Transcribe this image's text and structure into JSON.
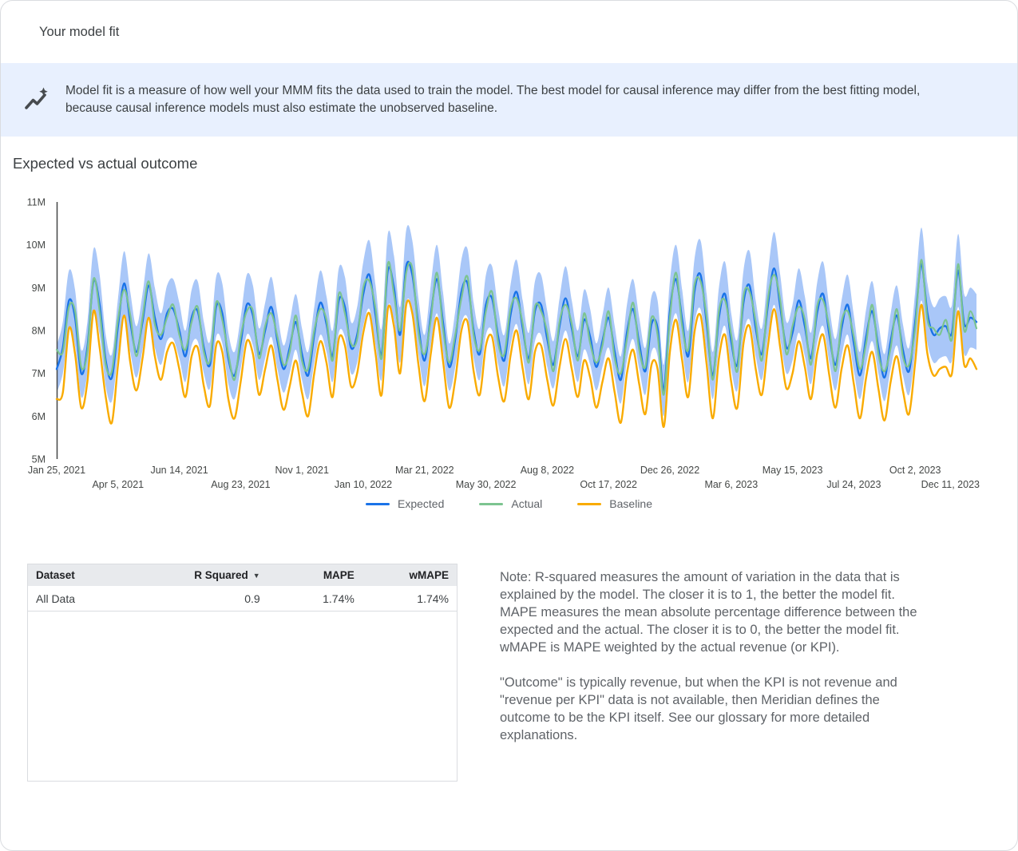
{
  "window": {
    "title": "Your model fit"
  },
  "banner": {
    "icon": "auto-graph-icon",
    "background": "#E8F0FE",
    "text": "Model fit is a measure of how well your MMM fits the data used to train the model. The best model for causal inference may differ from the best fitting model, because causal inference models must also estimate the unobserved baseline."
  },
  "section": {
    "title": "Expected vs actual outcome"
  },
  "chart_data": {
    "type": "line",
    "title": "Expected vs actual outcome",
    "frequency": "weekly",
    "unit": "millions",
    "grid": false,
    "legend_position": "bottom",
    "axis_color": "#444746",
    "y_axis": {
      "tick_labels": [
        "5M",
        "6M",
        "7M",
        "8M",
        "9M",
        "10M",
        "11M"
      ],
      "tick_values": [
        5,
        6,
        7,
        8,
        9,
        10,
        11
      ],
      "range_millions": [
        5,
        11
      ]
    },
    "x_axis": {
      "weeks_total": 150,
      "ticks_row1": [
        {
          "week": 0,
          "label": "Jan 25, 2021"
        },
        {
          "week": 20,
          "label": "Jun 14, 2021"
        },
        {
          "week": 40,
          "label": "Nov 1, 2021"
        },
        {
          "week": 60,
          "label": "Mar 21, 2022"
        },
        {
          "week": 80,
          "label": "Aug 8, 2022"
        },
        {
          "week": 100,
          "label": "Dec 26, 2022"
        },
        {
          "week": 120,
          "label": "May 15, 2023"
        },
        {
          "week": 140,
          "label": "Oct 2, 2023"
        }
      ],
      "ticks_row2": [
        {
          "week": 10,
          "label": "Apr 5, 2021"
        },
        {
          "week": 30,
          "label": "Aug 23, 2021"
        },
        {
          "week": 50,
          "label": "Jan 10, 2022"
        },
        {
          "week": 70,
          "label": "May 30, 2022"
        },
        {
          "week": 90,
          "label": "Oct 17, 2022"
        },
        {
          "week": 110,
          "label": "Mar 6, 2023"
        },
        {
          "week": 130,
          "label": "Jul 24, 2023"
        },
        {
          "week": 150,
          "label": "Dec 11, 2023"
        }
      ]
    },
    "band": {
      "name": "Expected credible interval",
      "color": "#A9C7F8",
      "around_series": "Expected",
      "half_width": [
        0.55,
        0.6,
        0.7,
        0.65,
        0.55,
        0.6,
        0.75,
        0.7,
        0.6,
        0.55,
        0.65,
        0.75,
        0.7,
        0.6,
        0.65,
        0.75,
        0.7,
        0.6,
        0.65,
        0.7,
        0.65,
        0.6,
        0.65,
        0.7,
        0.6,
        0.55,
        0.7,
        0.7,
        0.6,
        0.55,
        0.6,
        0.7,
        0.7,
        0.6,
        0.65,
        0.7,
        0.65,
        0.55,
        0.6,
        0.65,
        0.6,
        0.55,
        0.65,
        0.75,
        0.65,
        0.6,
        0.75,
        0.7,
        0.6,
        0.65,
        0.75,
        0.8,
        0.7,
        0.6,
        0.85,
        0.75,
        0.65,
        0.85,
        0.8,
        0.65,
        0.6,
        0.7,
        0.8,
        0.7,
        0.55,
        0.65,
        0.75,
        0.8,
        0.65,
        0.6,
        0.7,
        0.75,
        0.65,
        0.6,
        0.7,
        0.75,
        0.65,
        0.6,
        0.7,
        0.7,
        0.65,
        0.55,
        0.65,
        0.75,
        0.65,
        0.6,
        0.7,
        0.65,
        0.55,
        0.6,
        0.7,
        0.6,
        0.55,
        0.65,
        0.7,
        0.6,
        0.55,
        0.65,
        0.65,
        0.6,
        0.7,
        0.8,
        0.7,
        0.6,
        0.75,
        0.8,
        0.7,
        0.55,
        0.7,
        0.75,
        0.65,
        0.6,
        0.75,
        0.8,
        0.65,
        0.6,
        0.75,
        0.85,
        0.75,
        0.6,
        0.65,
        0.75,
        0.7,
        0.6,
        0.7,
        0.75,
        0.65,
        0.6,
        0.65,
        0.7,
        0.65,
        0.55,
        0.65,
        0.7,
        0.6,
        0.55,
        0.65,
        0.7,
        0.6,
        0.55,
        0.7,
        0.85,
        0.7,
        0.65,
        0.7,
        0.7,
        0.65,
        0.85,
        0.7,
        0.7,
        0.65
      ]
    },
    "series": [
      {
        "name": "Expected",
        "color": "#1A73E8",
        "values": [
          7.1,
          7.6,
          8.7,
          8.3,
          7.0,
          7.6,
          9.15,
          8.6,
          7.3,
          6.9,
          8.1,
          9.1,
          8.2,
          7.5,
          8.2,
          9.05,
          8.3,
          7.8,
          8.4,
          8.5,
          8.0,
          7.4,
          8.3,
          8.45,
          7.6,
          7.2,
          8.55,
          8.4,
          7.35,
          6.95,
          7.7,
          8.6,
          8.35,
          7.45,
          8.0,
          8.55,
          7.75,
          7.1,
          7.6,
          8.2,
          7.45,
          6.95,
          7.9,
          8.65,
          8.15,
          7.4,
          8.7,
          8.55,
          7.6,
          7.9,
          8.85,
          9.3,
          8.35,
          7.45,
          9.4,
          9.0,
          7.9,
          9.5,
          9.3,
          8.1,
          7.3,
          8.35,
          9.2,
          8.2,
          7.15,
          7.8,
          8.9,
          9.1,
          8.0,
          7.45,
          8.6,
          8.75,
          7.85,
          7.3,
          8.35,
          8.9,
          8.05,
          7.35,
          8.45,
          8.6,
          7.8,
          7.2,
          8.1,
          8.75,
          8.05,
          7.4,
          8.25,
          7.85,
          7.15,
          7.75,
          8.3,
          7.5,
          6.85,
          7.95,
          8.5,
          7.7,
          7.05,
          8.15,
          8.05,
          6.6,
          8.45,
          9.2,
          8.25,
          7.4,
          8.9,
          9.3,
          8.15,
          6.95,
          8.3,
          8.85,
          7.75,
          7.2,
          8.65,
          9.05,
          8.05,
          7.45,
          8.6,
          9.45,
          8.55,
          7.6,
          7.95,
          8.7,
          8.1,
          7.35,
          8.4,
          8.85,
          7.9,
          7.2,
          8.05,
          8.6,
          7.7,
          6.95,
          7.85,
          8.45,
          7.6,
          6.9,
          7.75,
          8.35,
          7.55,
          7.05,
          8.2,
          9.55,
          8.4,
          7.9,
          8.05,
          8.1,
          7.95,
          9.4,
          8.15,
          8.3,
          8.2
        ]
      },
      {
        "name": "Actual",
        "color": "#7CC490",
        "values": [
          7.55,
          7.5,
          8.55,
          8.45,
          7.15,
          7.5,
          9.2,
          8.45,
          7.2,
          7.05,
          8.25,
          8.95,
          8.35,
          7.4,
          8.3,
          9.15,
          8.15,
          7.9,
          8.3,
          8.6,
          7.9,
          7.55,
          8.2,
          8.55,
          7.5,
          7.3,
          8.65,
          8.25,
          7.45,
          6.85,
          7.85,
          8.45,
          8.45,
          7.35,
          8.1,
          8.4,
          7.85,
          7.2,
          7.5,
          8.35,
          7.3,
          7.1,
          8.0,
          8.5,
          8.25,
          7.3,
          8.85,
          8.4,
          7.7,
          7.8,
          9.0,
          9.15,
          8.5,
          7.35,
          9.55,
          8.85,
          8.0,
          9.35,
          9.45,
          7.95,
          7.45,
          8.25,
          9.35,
          8.05,
          7.25,
          7.9,
          8.75,
          9.25,
          7.9,
          7.55,
          8.45,
          8.9,
          7.7,
          7.45,
          8.5,
          8.75,
          8.15,
          7.25,
          8.55,
          8.45,
          7.95,
          7.05,
          8.2,
          8.6,
          8.15,
          7.3,
          8.4,
          7.7,
          7.25,
          7.65,
          8.45,
          7.35,
          7.0,
          7.8,
          8.65,
          7.55,
          7.15,
          8.3,
          7.9,
          6.5,
          8.3,
          9.35,
          8.1,
          7.55,
          9.05,
          9.15,
          8.3,
          6.85,
          8.45,
          8.7,
          7.9,
          7.05,
          8.8,
          8.9,
          8.2,
          7.3,
          8.75,
          9.3,
          8.7,
          7.45,
          8.1,
          8.55,
          8.25,
          7.2,
          8.55,
          8.7,
          8.05,
          7.05,
          8.2,
          8.45,
          7.85,
          7.1,
          7.7,
          8.6,
          7.45,
          7.05,
          7.6,
          8.5,
          7.4,
          7.2,
          8.05,
          9.65,
          8.25,
          8.05,
          7.9,
          8.25,
          7.8,
          9.55,
          8.0,
          8.45,
          8.05
        ]
      },
      {
        "name": "Baseline",
        "color": "#F9AB00",
        "values": [
          6.4,
          6.55,
          8.05,
          7.45,
          6.2,
          6.8,
          8.45,
          7.6,
          6.45,
          5.85,
          7.2,
          8.35,
          7.25,
          6.6,
          7.35,
          8.3,
          7.4,
          6.85,
          7.5,
          7.7,
          7.1,
          6.45,
          7.4,
          7.6,
          6.7,
          6.25,
          7.65,
          7.5,
          6.4,
          5.95,
          6.8,
          7.75,
          7.45,
          6.5,
          7.1,
          7.65,
          6.85,
          6.15,
          6.7,
          7.3,
          6.55,
          6.0,
          7.0,
          7.75,
          7.25,
          6.45,
          7.8,
          7.65,
          6.7,
          7.0,
          7.95,
          8.4,
          7.45,
          6.5,
          8.5,
          8.1,
          7.0,
          8.6,
          8.4,
          7.2,
          6.35,
          7.45,
          8.3,
          7.3,
          6.2,
          6.85,
          8.0,
          8.2,
          7.05,
          6.5,
          7.65,
          7.85,
          6.9,
          6.35,
          7.4,
          8.0,
          7.1,
          6.4,
          7.5,
          7.65,
          6.85,
          6.25,
          7.15,
          7.8,
          7.1,
          6.45,
          7.3,
          6.9,
          6.2,
          6.8,
          7.35,
          6.55,
          5.85,
          7.0,
          7.55,
          6.75,
          6.05,
          7.2,
          7.1,
          5.75,
          7.5,
          8.25,
          7.3,
          6.45,
          7.95,
          8.35,
          7.2,
          5.95,
          7.35,
          7.9,
          6.8,
          6.2,
          7.7,
          8.1,
          7.1,
          6.5,
          7.65,
          8.5,
          7.6,
          6.65,
          7.0,
          7.75,
          7.15,
          6.4,
          7.45,
          7.9,
          6.95,
          6.2,
          7.1,
          7.65,
          6.75,
          5.95,
          6.9,
          7.5,
          6.65,
          5.9,
          6.8,
          7.4,
          6.6,
          6.05,
          7.25,
          8.6,
          7.45,
          6.95,
          7.1,
          7.15,
          7.0,
          8.45,
          7.2,
          7.35,
          7.1
        ]
      }
    ]
  },
  "table": {
    "headers": [
      {
        "label": "Dataset",
        "align": "left",
        "sortable": false
      },
      {
        "label": "R Squared",
        "align": "right",
        "sortable": true,
        "sort_indicator": "▼"
      },
      {
        "label": "MAPE",
        "align": "right",
        "sortable": false
      },
      {
        "label": "wMAPE",
        "align": "right",
        "sortable": false
      }
    ],
    "rows": [
      [
        "All Data",
        "0.9",
        "1.74%",
        "1.74%"
      ]
    ]
  },
  "notes": {
    "paragraph1": "Note: R-squared measures the amount of variation in the data that is explained by the model. The closer it is to 1, the better the model fit. MAPE measures the mean absolute percentage difference between the expected and the actual. The closer it is to 0, the better the model fit. wMAPE is MAPE weighted by the actual revenue (or KPI).",
    "paragraph2": "\"Outcome\" is typically revenue, but when the KPI is not revenue and \"revenue per KPI\" data is not available, then Meridian defines the outcome to be the KPI itself. See our glossary for more detailed explanations."
  }
}
